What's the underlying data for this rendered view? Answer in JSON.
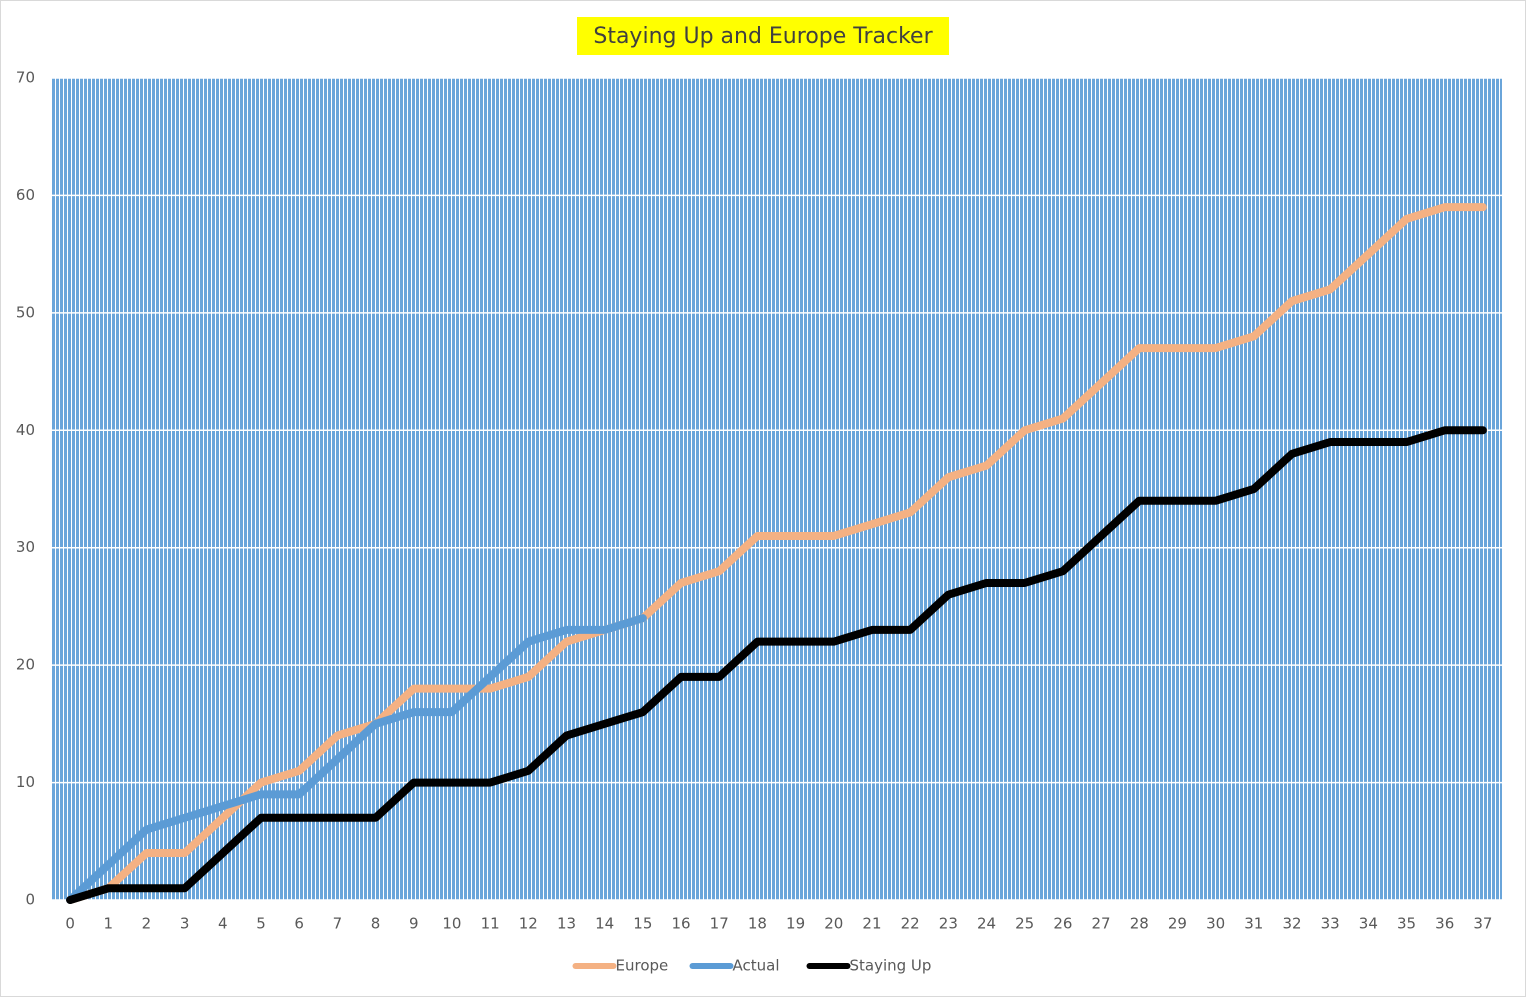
{
  "chart_data": {
    "type": "line",
    "title": "Staying Up and Europe Tracker",
    "categories": [
      "0",
      "1",
      "2",
      "3",
      "4",
      "5",
      "6",
      "7",
      "8",
      "9",
      "10",
      "11",
      "12",
      "13",
      "14",
      "15",
      "16",
      "17",
      "18",
      "19",
      "20",
      "21",
      "22",
      "23",
      "24",
      "25",
      "26",
      "27",
      "28",
      "29",
      "30",
      "31",
      "32",
      "33",
      "34",
      "35",
      "36",
      "37"
    ],
    "series": [
      {
        "name": "Europe",
        "color": "#f4b183",
        "values": [
          0,
          1,
          4,
          4,
          7,
          10,
          11,
          14,
          15,
          18,
          18,
          18,
          19,
          22,
          23,
          24,
          27,
          28,
          31,
          31,
          31,
          32,
          33,
          36,
          37,
          40,
          41,
          44,
          47,
          47,
          47,
          48,
          51,
          52,
          55,
          58,
          59,
          59
        ]
      },
      {
        "name": "Actual",
        "color": "#5b9bd5",
        "values": [
          0,
          3,
          6,
          7,
          8,
          9,
          9,
          12,
          15,
          16,
          16,
          19,
          22,
          23,
          23,
          24,
          null,
          null,
          null,
          null,
          null,
          null,
          null,
          null,
          null,
          null,
          null,
          null,
          null,
          null,
          null,
          null,
          null,
          null,
          null,
          null,
          null,
          null
        ]
      },
      {
        "name": "Staying Up",
        "color": "#000000",
        "values": [
          0,
          1,
          1,
          1,
          4,
          7,
          7,
          7,
          7,
          10,
          10,
          10,
          11,
          14,
          15,
          16,
          19,
          19,
          22,
          22,
          22,
          23,
          23,
          26,
          27,
          27,
          28,
          31,
          34,
          34,
          34,
          35,
          38,
          39,
          39,
          39,
          40,
          40
        ]
      }
    ],
    "ylim": [
      0,
      70
    ],
    "yticks": [
      0,
      10,
      20,
      30,
      40,
      50,
      60,
      70
    ],
    "grid": true,
    "legend": "bottom"
  }
}
